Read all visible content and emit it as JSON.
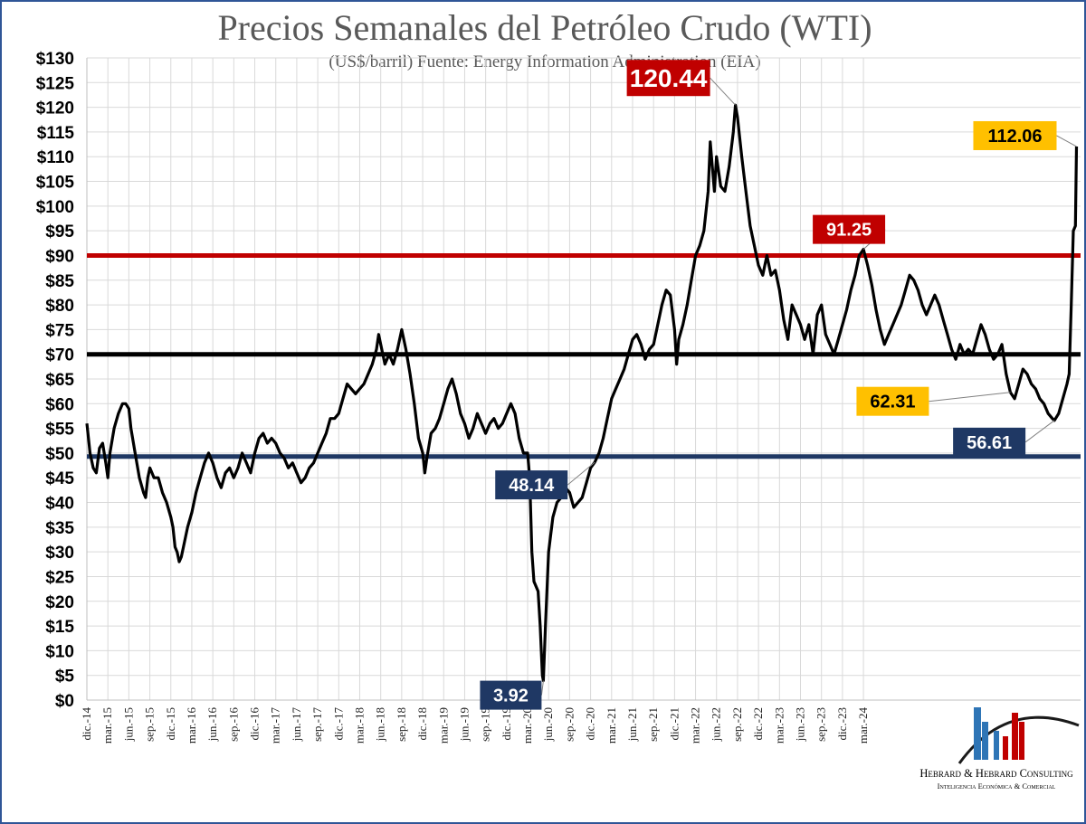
{
  "chart_data": {
    "type": "line",
    "title": "Precios Semanales del Petróleo Crudo (WTI)",
    "subtitle": "(US$/barril)   Fuente: Energy Information Administration (EIA)",
    "xlabel": "",
    "ylabel": "",
    "ylim": [
      0,
      130
    ],
    "y_ticks": [
      "$0",
      "$5",
      "$10",
      "$15",
      "$20",
      "$25",
      "$30",
      "$35",
      "$40",
      "$45",
      "$50",
      "$55",
      "$60",
      "$65",
      "$70",
      "$75",
      "$80",
      "$85",
      "$90",
      "$95",
      "$100",
      "$105",
      "$110",
      "$115",
      "$120",
      "$125",
      "$130"
    ],
    "x_ticks": [
      "dic.-14",
      "mar.-15",
      "jun.-15",
      "sep.-15",
      "dic.-15",
      "mar.-16",
      "jun.-16",
      "sep.-16",
      "dic.-16",
      "mar.-17",
      "jun.-17",
      "sep.-17",
      "dic.-17",
      "mar.-18",
      "jun.-18",
      "sep.-18",
      "dic.-18",
      "mar.-19",
      "jun.-19",
      "sep.-19",
      "dic.-19",
      "mar.-20",
      "jun.-20",
      "sep.-20",
      "dic.-20",
      "mar.-21",
      "jun.-21",
      "sep.-21",
      "dic.-21",
      "mar.-22",
      "jun.-22",
      "sep.-22",
      "dic.-22",
      "mar.-23",
      "jun.-23",
      "sep.-23",
      "dic.-23",
      "mar.-24"
    ],
    "grid": true,
    "x_range": [
      0,
      47
    ],
    "series": [
      {
        "name": "WTI semanal",
        "color": "#000000",
        "points": [
          [
            0,
            56
          ],
          [
            0.15,
            50
          ],
          [
            0.3,
            47
          ],
          [
            0.45,
            46
          ],
          [
            0.6,
            51
          ],
          [
            0.75,
            52
          ],
          [
            0.9,
            48
          ],
          [
            1.0,
            45
          ],
          [
            1.1,
            50
          ],
          [
            1.3,
            55
          ],
          [
            1.5,
            58
          ],
          [
            1.7,
            60
          ],
          [
            1.85,
            60
          ],
          [
            2.0,
            59
          ],
          [
            2.1,
            55
          ],
          [
            2.3,
            50
          ],
          [
            2.5,
            45
          ],
          [
            2.7,
            42
          ],
          [
            2.8,
            41
          ],
          [
            2.9,
            45
          ],
          [
            3.0,
            47
          ],
          [
            3.2,
            45
          ],
          [
            3.4,
            45
          ],
          [
            3.6,
            42
          ],
          [
            3.8,
            40
          ],
          [
            4.0,
            37
          ],
          [
            4.1,
            35
          ],
          [
            4.2,
            31
          ],
          [
            4.3,
            30
          ],
          [
            4.4,
            28
          ],
          [
            4.5,
            29
          ],
          [
            4.6,
            31
          ],
          [
            4.8,
            35
          ],
          [
            5.0,
            38
          ],
          [
            5.2,
            42
          ],
          [
            5.4,
            45
          ],
          [
            5.6,
            48
          ],
          [
            5.8,
            50
          ],
          [
            6.0,
            48
          ],
          [
            6.2,
            45
          ],
          [
            6.4,
            43
          ],
          [
            6.6,
            46
          ],
          [
            6.8,
            47
          ],
          [
            7.0,
            45
          ],
          [
            7.2,
            47
          ],
          [
            7.4,
            50
          ],
          [
            7.6,
            48
          ],
          [
            7.8,
            46
          ],
          [
            8.0,
            50
          ],
          [
            8.2,
            53
          ],
          [
            8.4,
            54
          ],
          [
            8.6,
            52
          ],
          [
            8.8,
            53
          ],
          [
            9.0,
            52
          ],
          [
            9.2,
            50
          ],
          [
            9.4,
            49
          ],
          [
            9.6,
            47
          ],
          [
            9.8,
            48
          ],
          [
            10.0,
            46
          ],
          [
            10.2,
            44
          ],
          [
            10.4,
            45
          ],
          [
            10.6,
            47
          ],
          [
            10.8,
            48
          ],
          [
            11.0,
            50
          ],
          [
            11.2,
            52
          ],
          [
            11.4,
            54
          ],
          [
            11.6,
            57
          ],
          [
            11.8,
            57
          ],
          [
            12.0,
            58
          ],
          [
            12.2,
            61
          ],
          [
            12.4,
            64
          ],
          [
            12.6,
            63
          ],
          [
            12.8,
            62
          ],
          [
            13.0,
            63
          ],
          [
            13.2,
            64
          ],
          [
            13.4,
            66
          ],
          [
            13.6,
            68
          ],
          [
            13.8,
            71
          ],
          [
            13.9,
            74
          ],
          [
            14.0,
            72
          ],
          [
            14.2,
            68
          ],
          [
            14.4,
            70
          ],
          [
            14.6,
            68
          ],
          [
            14.8,
            71
          ],
          [
            15.0,
            75
          ],
          [
            15.2,
            71
          ],
          [
            15.4,
            66
          ],
          [
            15.6,
            60
          ],
          [
            15.8,
            53
          ],
          [
            16.0,
            50
          ],
          [
            16.1,
            46
          ],
          [
            16.2,
            49
          ],
          [
            16.4,
            54
          ],
          [
            16.6,
            55
          ],
          [
            16.8,
            57
          ],
          [
            17.0,
            60
          ],
          [
            17.2,
            63
          ],
          [
            17.4,
            65
          ],
          [
            17.6,
            62
          ],
          [
            17.8,
            58
          ],
          [
            18.0,
            56
          ],
          [
            18.2,
            53
          ],
          [
            18.4,
            55
          ],
          [
            18.6,
            58
          ],
          [
            18.8,
            56
          ],
          [
            19.0,
            54
          ],
          [
            19.2,
            56
          ],
          [
            19.4,
            57
          ],
          [
            19.6,
            55
          ],
          [
            19.8,
            56
          ],
          [
            20.0,
            58
          ],
          [
            20.2,
            60
          ],
          [
            20.4,
            58
          ],
          [
            20.6,
            53
          ],
          [
            20.8,
            50
          ],
          [
            21.0,
            50
          ],
          [
            21.1,
            45
          ],
          [
            21.2,
            30
          ],
          [
            21.3,
            24
          ],
          [
            21.5,
            22
          ],
          [
            21.6,
            15
          ],
          [
            21.7,
            5
          ],
          [
            21.75,
            3.92
          ],
          [
            21.85,
            15
          ],
          [
            22.0,
            30
          ],
          [
            22.2,
            37
          ],
          [
            22.4,
            40
          ],
          [
            22.6,
            41
          ],
          [
            22.8,
            43
          ],
          [
            23.0,
            42
          ],
          [
            23.2,
            39
          ],
          [
            23.4,
            40
          ],
          [
            23.6,
            41
          ],
          [
            23.8,
            44
          ],
          [
            24.0,
            47
          ],
          [
            24.2,
            48.14
          ],
          [
            24.4,
            50
          ],
          [
            24.6,
            53
          ],
          [
            24.8,
            57
          ],
          [
            25.0,
            61
          ],
          [
            25.2,
            63
          ],
          [
            25.4,
            65
          ],
          [
            25.6,
            67
          ],
          [
            25.8,
            70
          ],
          [
            26.0,
            73
          ],
          [
            26.2,
            74
          ],
          [
            26.4,
            72
          ],
          [
            26.6,
            69
          ],
          [
            26.8,
            71
          ],
          [
            27.0,
            72
          ],
          [
            27.2,
            76
          ],
          [
            27.4,
            80
          ],
          [
            27.6,
            83
          ],
          [
            27.8,
            82
          ],
          [
            28.0,
            75
          ],
          [
            28.1,
            68
          ],
          [
            28.2,
            73
          ],
          [
            28.4,
            76
          ],
          [
            28.6,
            80
          ],
          [
            28.8,
            85
          ],
          [
            29.0,
            90
          ],
          [
            29.2,
            92
          ],
          [
            29.4,
            95
          ],
          [
            29.6,
            103
          ],
          [
            29.7,
            113
          ],
          [
            29.8,
            108
          ],
          [
            29.9,
            103
          ],
          [
            30.0,
            110
          ],
          [
            30.2,
            104
          ],
          [
            30.4,
            103
          ],
          [
            30.6,
            108
          ],
          [
            30.8,
            115
          ],
          [
            30.9,
            120.44
          ],
          [
            31.0,
            118
          ],
          [
            31.2,
            110
          ],
          [
            31.4,
            103
          ],
          [
            31.6,
            96
          ],
          [
            31.8,
            92
          ],
          [
            32.0,
            88
          ],
          [
            32.2,
            86
          ],
          [
            32.4,
            90
          ],
          [
            32.6,
            86
          ],
          [
            32.8,
            87
          ],
          [
            33.0,
            83
          ],
          [
            33.2,
            77
          ],
          [
            33.4,
            73
          ],
          [
            33.6,
            80
          ],
          [
            33.8,
            78
          ],
          [
            34.0,
            76
          ],
          [
            34.2,
            73
          ],
          [
            34.4,
            76
          ],
          [
            34.6,
            70
          ],
          [
            34.8,
            78
          ],
          [
            35.0,
            80
          ],
          [
            35.2,
            74
          ],
          [
            35.4,
            72
          ],
          [
            35.6,
            70
          ],
          [
            35.8,
            73
          ],
          [
            36.0,
            76
          ],
          [
            36.2,
            79
          ],
          [
            36.4,
            83
          ],
          [
            36.6,
            86
          ],
          [
            36.8,
            90
          ],
          [
            37.0,
            91.25
          ],
          [
            37.2,
            88
          ],
          [
            37.4,
            84
          ],
          [
            37.6,
            79
          ],
          [
            37.8,
            75
          ],
          [
            38.0,
            72
          ],
          [
            38.2,
            74
          ],
          [
            38.4,
            76
          ],
          [
            38.6,
            78
          ],
          [
            38.8,
            80
          ],
          [
            39.0,
            83
          ],
          [
            39.2,
            86
          ],
          [
            39.4,
            85
          ],
          [
            39.6,
            83
          ],
          [
            39.8,
            80
          ],
          [
            40.0,
            78
          ],
          [
            40.2,
            80
          ],
          [
            40.4,
            82
          ],
          [
            40.6,
            80
          ],
          [
            40.8,
            77
          ],
          [
            41.0,
            74
          ],
          [
            41.2,
            71
          ],
          [
            41.4,
            69
          ],
          [
            41.6,
            72
          ],
          [
            41.8,
            70
          ],
          [
            42.0,
            71
          ],
          [
            42.2,
            70
          ],
          [
            42.4,
            73
          ],
          [
            42.6,
            76
          ],
          [
            42.8,
            74
          ],
          [
            43.0,
            71
          ],
          [
            43.2,
            69
          ],
          [
            43.4,
            70
          ],
          [
            43.6,
            72
          ],
          [
            43.8,
            66
          ],
          [
            44.0,
            62.31
          ],
          [
            44.2,
            61
          ],
          [
            44.4,
            64
          ],
          [
            44.6,
            67
          ],
          [
            44.8,
            66
          ],
          [
            45.0,
            64
          ],
          [
            45.2,
            63
          ],
          [
            45.4,
            61
          ],
          [
            45.6,
            60
          ],
          [
            45.8,
            58
          ],
          [
            46.0,
            57
          ],
          [
            46.1,
            56.61
          ],
          [
            46.3,
            58
          ],
          [
            46.5,
            61
          ],
          [
            46.7,
            64
          ],
          [
            46.8,
            66
          ],
          [
            46.9,
            80
          ],
          [
            47.0,
            95
          ],
          [
            47.1,
            96
          ],
          [
            47.15,
            112.06
          ]
        ]
      }
    ],
    "reference_lines": [
      {
        "name": "nivel rojo",
        "value": 90,
        "color": "#c00000"
      },
      {
        "name": "nivel negro",
        "value": 70,
        "color": "#000000"
      },
      {
        "name": "nivel azul",
        "value": 49.3,
        "color": "#1f3864"
      }
    ],
    "annotations": [
      {
        "label": "120.44",
        "x": 30.9,
        "y": 120.44,
        "bg": "#c00000",
        "fg": "#ffffff"
      },
      {
        "label": "112.06",
        "x": 47.15,
        "y": 112.06,
        "bg": "#ffc000",
        "fg": "#000000"
      },
      {
        "label": "91.25",
        "x": 37.0,
        "y": 91.25,
        "bg": "#c00000",
        "fg": "#ffffff"
      },
      {
        "label": "62.31",
        "x": 44.0,
        "y": 62.31,
        "bg": "#ffc000",
        "fg": "#000000"
      },
      {
        "label": "56.61",
        "x": 46.1,
        "y": 56.61,
        "bg": "#1f3864",
        "fg": "#ffffff"
      },
      {
        "label": "48.14",
        "x": 24.2,
        "y": 48.14,
        "bg": "#1f3864",
        "fg": "#ffffff"
      },
      {
        "label": "3.92",
        "x": 21.75,
        "y": 3.92,
        "bg": "#1f3864",
        "fg": "#ffffff"
      }
    ]
  },
  "logo": {
    "name": "Hebrard & Hebrard Consulting",
    "tagline": "Inteligencia Económica & Comercial"
  },
  "colors": {
    "frame": "#2f5597",
    "grid": "#d9d9d9",
    "title": "#595959",
    "subtitle": "#595959"
  }
}
